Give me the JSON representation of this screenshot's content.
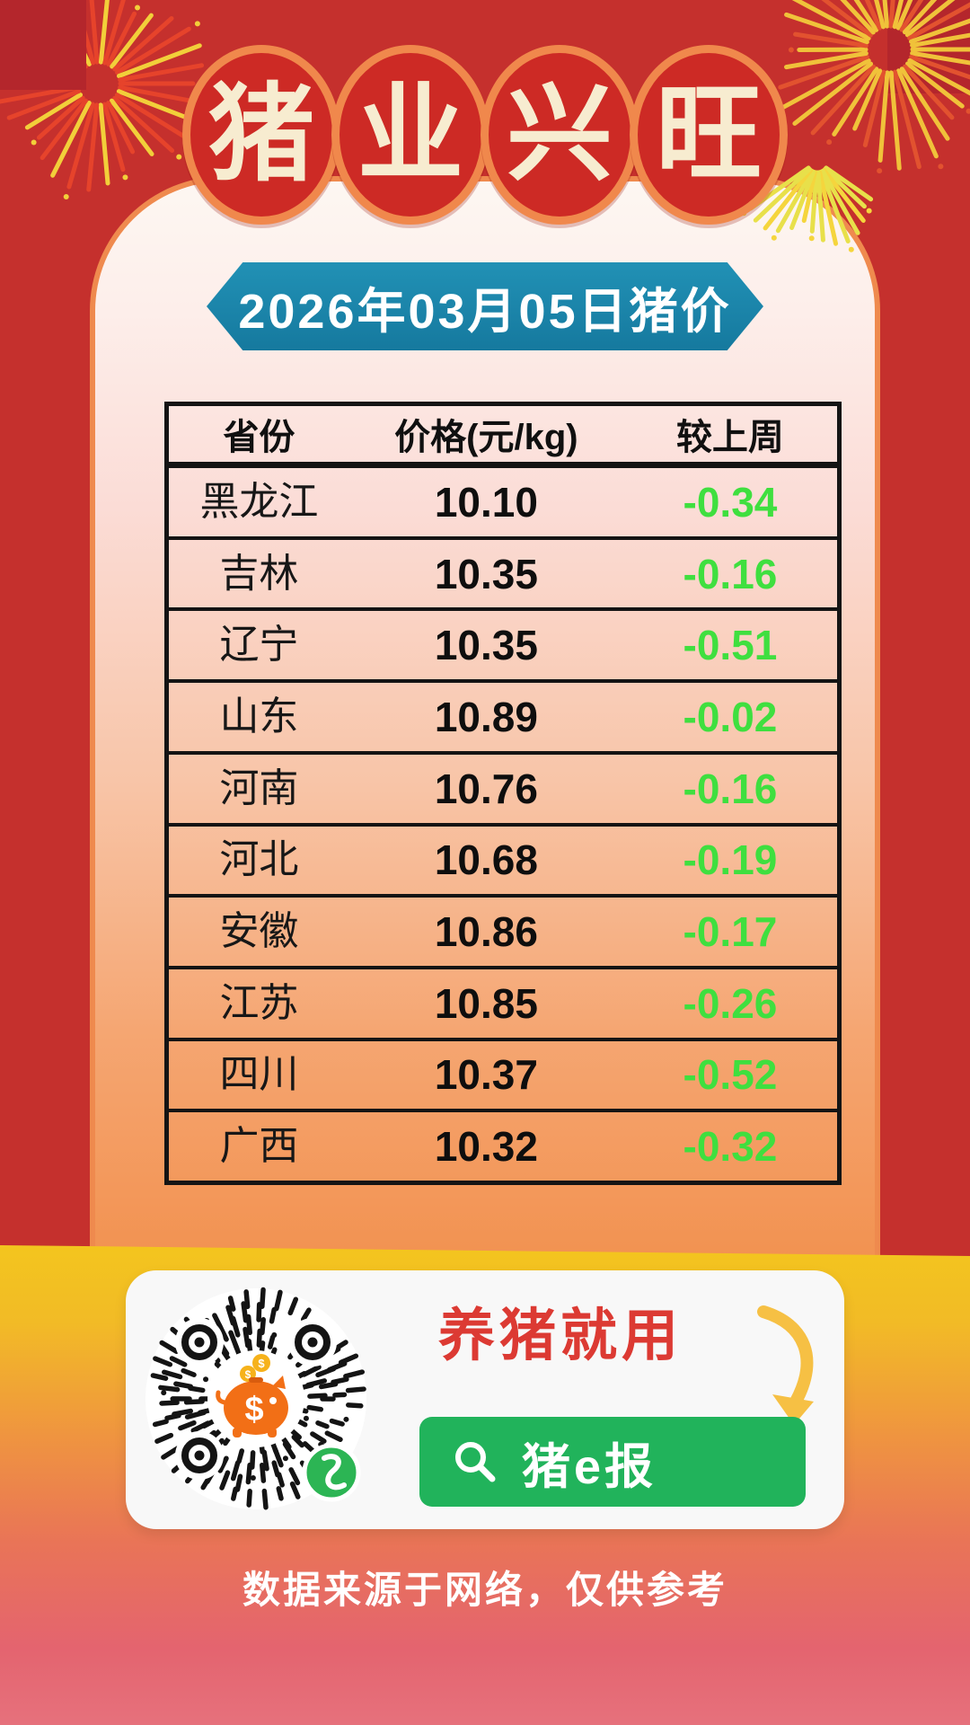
{
  "title": {
    "text": "猪业兴旺",
    "chars": [
      "猪",
      "业",
      "兴",
      "旺"
    ]
  },
  "date_banner": {
    "label": "2026年03月05日猪价"
  },
  "table": {
    "headers": {
      "province": "省份",
      "price": "价格(元/kg)",
      "change": "较上周"
    },
    "rows": [
      {
        "province": "黑龙江",
        "price": "10.10",
        "change": "-0.34"
      },
      {
        "province": "吉林",
        "price": "10.35",
        "change": "-0.16"
      },
      {
        "province": "辽宁",
        "price": "10.35",
        "change": "-0.51"
      },
      {
        "province": "山东",
        "price": "10.89",
        "change": "-0.02"
      },
      {
        "province": "河南",
        "price": "10.76",
        "change": "-0.16"
      },
      {
        "province": "河北",
        "price": "10.68",
        "change": "-0.19"
      },
      {
        "province": "安徽",
        "price": "10.86",
        "change": "-0.17"
      },
      {
        "province": "江苏",
        "price": "10.85",
        "change": "-0.26"
      },
      {
        "province": "四川",
        "price": "10.37",
        "change": "-0.52"
      },
      {
        "province": "广西",
        "price": "10.32",
        "change": "-0.32"
      }
    ]
  },
  "promo": {
    "headline": "养猪就用",
    "button_label": "猪e报",
    "qr_label": "wechat-miniprogram-qr"
  },
  "footer": {
    "disclaimer": "数据来源于网络，仅供参考"
  },
  "colors": {
    "background_red": "#c5302d",
    "badge_red": "#cd2a25",
    "badge_ring_orange": "#f0884c",
    "banner_blue": "#1b84a9",
    "change_green": "#3fdf3f",
    "button_green": "#21b35b",
    "headline_red": "#dc3a33",
    "band_gold": "#f3c51e",
    "band_rose": "#e6717c"
  },
  "chart_data": {
    "type": "table",
    "title": "2026年03月05日猪价",
    "columns": [
      "省份",
      "价格(元/kg)",
      "较上周"
    ],
    "rows": [
      [
        "黑龙江",
        10.1,
        -0.34
      ],
      [
        "吉林",
        10.35,
        -0.16
      ],
      [
        "辽宁",
        10.35,
        -0.51
      ],
      [
        "山东",
        10.89,
        -0.02
      ],
      [
        "河南",
        10.76,
        -0.16
      ],
      [
        "河北",
        10.68,
        -0.19
      ],
      [
        "安徽",
        10.86,
        -0.17
      ],
      [
        "江苏",
        10.85,
        -0.26
      ],
      [
        "四川",
        10.37,
        -0.52
      ],
      [
        "广西",
        10.32,
        -0.32
      ]
    ]
  }
}
